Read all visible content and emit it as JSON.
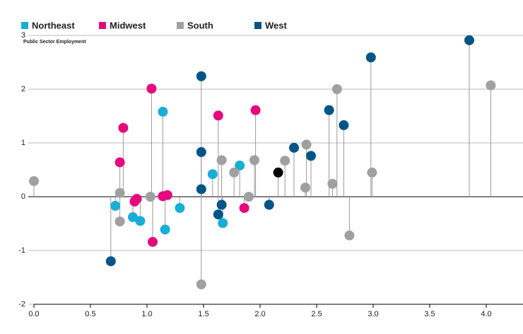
{
  "chart_data": {
    "type": "scatter",
    "y_label": "Public Sector Employment",
    "xlim": [
      0,
      4.325
    ],
    "ylim": [
      -2,
      3
    ],
    "xticks": [
      {
        "value": 0,
        "label": "0.0"
      },
      0.5,
      {
        "value": 1,
        "label": "1.0"
      },
      1.5,
      {
        "value": 2,
        "label": "2.0"
      },
      2.5,
      {
        "value": 3,
        "label": "3.0"
      },
      3.5,
      {
        "value": 4,
        "label": "4.0"
      }
    ],
    "yticks": [
      3,
      2,
      1,
      0,
      -1,
      -2
    ],
    "grid": true,
    "stems": true,
    "legend": "top",
    "series": [
      {
        "name": "Northeast",
        "color": "#1aaed6",
        "x": [
          0.72,
          0.875,
          0.94,
          1.14,
          1.16,
          1.29,
          1.58,
          1.67,
          1.82
        ],
        "values": [
          -0.17,
          -0.38,
          -0.45,
          1.58,
          -0.61,
          -0.21,
          0.42,
          -0.49,
          0.58
        ]
      },
      {
        "name": "Midwest",
        "color": "#e5097f",
        "x": [
          0.76,
          0.79,
          0.89,
          0.91,
          1.04,
          1.05,
          1.14,
          1.18,
          1.63,
          1.86,
          1.96
        ],
        "values": [
          0.64,
          1.28,
          -0.09,
          -0.04,
          2.01,
          -0.84,
          0.01,
          0.03,
          1.51,
          -0.21,
          1.61
        ]
      },
      {
        "name": "South",
        "color": "#a0a0a0",
        "x": [
          0.0,
          0.76,
          0.76,
          1.03,
          1.48,
          1.66,
          1.77,
          1.9,
          1.95,
          2.22,
          2.41,
          2.4,
          2.64,
          2.68,
          2.79,
          2.99,
          4.04
        ],
        "values": [
          0.29,
          0.07,
          -0.46,
          0.0,
          -1.63,
          0.68,
          0.45,
          0.0,
          0.68,
          0.67,
          0.97,
          0.17,
          0.24,
          2.0,
          -0.72,
          0.45,
          2.07
        ]
      },
      {
        "name": "West",
        "color": "#005586",
        "x": [
          0.68,
          1.48,
          1.48,
          1.48,
          1.63,
          1.66,
          2.08,
          2.3,
          2.45,
          2.61,
          2.74,
          2.98,
          3.85
        ],
        "values": [
          -1.2,
          2.24,
          0.83,
          0.14,
          -0.33,
          -0.15,
          -0.15,
          0.91,
          0.76,
          1.61,
          1.33,
          2.59,
          2.91
        ]
      },
      {
        "color": "#000000",
        "x": [
          2.16
        ],
        "values": [
          0.45
        ]
      }
    ]
  }
}
